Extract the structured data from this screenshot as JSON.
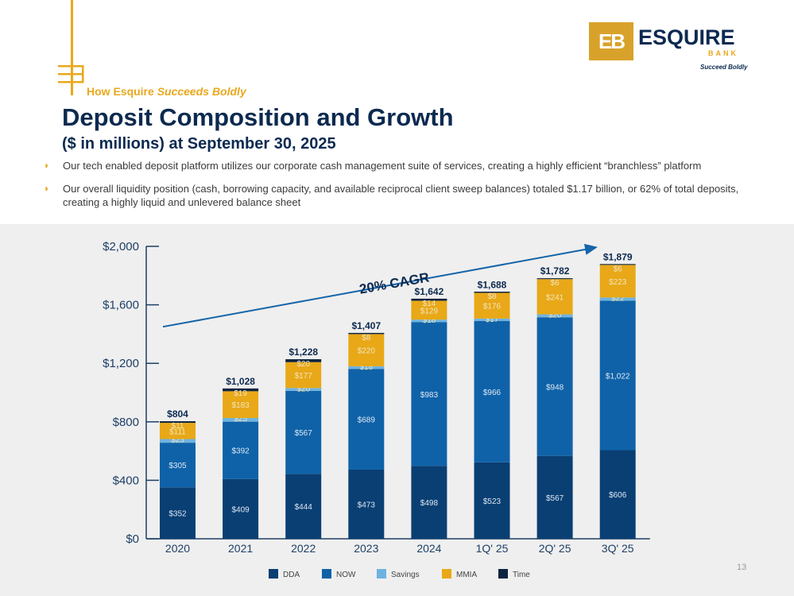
{
  "header": {
    "kicker_part1": "How Esquire",
    "kicker_part2": "Succeeds Boldly",
    "title": "Deposit Composition and Growth",
    "subtitle": "($ in millions) at September 30, 2025"
  },
  "bullets": [
    "Our tech enabled deposit platform utilizes our corporate cash management suite of services, creating a highly efficient “branchless” platform",
    "Our overall liquidity position (cash, borrowing capacity, and available reciprocal client sweep balances) totaled $1.17 billion, or 62% of total deposits, creating a highly liquid and unlevered balance sheet"
  ],
  "logo": {
    "mark": "EB",
    "name": "ESQUIRE",
    "bank": "BANK",
    "tagline": "Succeed Boldly"
  },
  "page_number": "13",
  "colors": {
    "DDA": "#0a3f73",
    "NOW": "#0f62a8",
    "Savings": "#6eb3e0",
    "MMIA": "#e8a817",
    "Time": "#0c2340",
    "accent": "#e9a81c",
    "navy": "#0c2a50",
    "trend": "#1565a8"
  },
  "chart_data": {
    "type": "bar",
    "stacked": true,
    "categories": [
      "2020",
      "2021",
      "2022",
      "2023",
      "2024",
      "1Q' 25",
      "2Q' 25",
      "3Q' 25"
    ],
    "series": [
      {
        "name": "DDA",
        "values": [
          352,
          409,
          444,
          473,
          498,
          523,
          567,
          606
        ]
      },
      {
        "name": "NOW",
        "values": [
          305,
          392,
          567,
          689,
          983,
          966,
          948,
          1022
        ]
      },
      {
        "name": "Savings",
        "values": [
          25,
          25,
          20,
          18,
          18,
          17,
          20,
          22
        ]
      },
      {
        "name": "MMIA",
        "values": [
          111,
          183,
          177,
          220,
          129,
          176,
          241,
          223
        ]
      },
      {
        "name": "Time",
        "values": [
          11,
          19,
          20,
          8,
          14,
          8,
          6,
          6
        ]
      }
    ],
    "segment_labels": [
      [
        "$352",
        "$305",
        "$25",
        "$111",
        "$11"
      ],
      [
        "$409",
        "$392",
        "$25",
        "$183",
        "$19"
      ],
      [
        "$444",
        "$567",
        "$20",
        "$177",
        "$20"
      ],
      [
        "$473",
        "$689",
        "$18",
        "$220",
        "$8"
      ],
      [
        "$498",
        "$983",
        "$18",
        "$129",
        "$14"
      ],
      [
        "$523",
        "$966",
        "$17",
        "$176",
        "$8"
      ],
      [
        "$567",
        "$948",
        "$20",
        "$241",
        "$6"
      ],
      [
        "$606",
        "$1,022",
        "$22",
        "$223",
        "$6"
      ]
    ],
    "totals": [
      804,
      1028,
      1228,
      1407,
      1642,
      1688,
      1782,
      1879
    ],
    "total_labels": [
      "$804",
      "$1,028",
      "$1,228",
      "$1,407",
      "$1,642",
      "$1,688",
      "$1,782",
      "$1,879"
    ],
    "ylim": [
      0,
      2000
    ],
    "yticks": [
      0,
      400,
      800,
      1200,
      1600,
      2000
    ],
    "ytick_labels": [
      "$0",
      "$400",
      "$800",
      "$1,200",
      "$1,600",
      "$2,000"
    ],
    "annotation": "20% CAGR",
    "trend_arrow": {
      "from_value": 1450,
      "to_value": 1995
    },
    "legend": [
      "DDA",
      "NOW",
      "Savings",
      "MMIA",
      "Time"
    ],
    "legend_position": "bottom"
  }
}
